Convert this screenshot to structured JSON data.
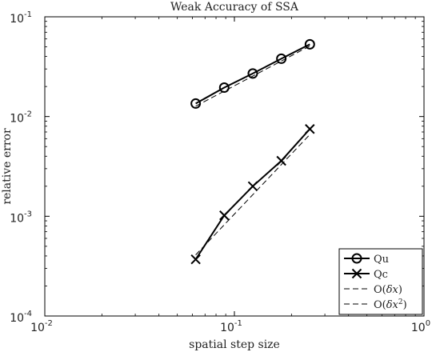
{
  "chart_data": {
    "type": "line",
    "title": "Weak Accuracy of SSA",
    "xlabel": "spatial step size",
    "ylabel": "relative error",
    "xscale": "log",
    "yscale": "log",
    "xlim": [
      0.01,
      1
    ],
    "ylim": [
      0.0001,
      0.1
    ],
    "grid": false,
    "legend_position": "bottom-right",
    "x_ticks": [
      {
        "base": "10",
        "exp": "-2",
        "value": 0.01
      },
      {
        "base": "10",
        "exp": "-1",
        "value": 0.1
      },
      {
        "base": "10",
        "exp": "0",
        "value": 1
      }
    ],
    "y_ticks": [
      {
        "base": "10",
        "exp": "-4",
        "value": 0.0001
      },
      {
        "base": "10",
        "exp": "-3",
        "value": 0.001
      },
      {
        "base": "10",
        "exp": "-2",
        "value": 0.01
      },
      {
        "base": "10",
        "exp": "-1",
        "value": 0.1
      }
    ],
    "series": [
      {
        "name": "Qu",
        "style": "solid",
        "marker": "circle",
        "color": "#000000",
        "x": [
          0.0625,
          0.0884,
          0.125,
          0.1768,
          0.25
        ],
        "y": [
          0.0135,
          0.0195,
          0.027,
          0.038,
          0.053
        ]
      },
      {
        "name": "Qc",
        "style": "solid",
        "marker": "cross",
        "color": "#000000",
        "x": [
          0.0625,
          0.0884,
          0.125,
          0.1768,
          0.25
        ],
        "y": [
          0.00037,
          0.00102,
          0.002,
          0.0036,
          0.0075
        ]
      },
      {
        "name": "O(δx)",
        "name_parts": {
          "pre": "O(",
          "var": "δx",
          "sup": "",
          "post": ")"
        },
        "style": "dashed",
        "marker": "none",
        "color": "#000000",
        "x": [
          0.0625,
          0.25
        ],
        "y": [
          0.0127,
          0.051
        ]
      },
      {
        "name": "O(δx²)",
        "name_parts": {
          "pre": "O(",
          "var": "δx",
          "sup": "2",
          "post": ")"
        },
        "style": "dashed",
        "marker": "none",
        "color": "#000000",
        "x": [
          0.0625,
          0.25
        ],
        "y": [
          0.00041,
          0.0066
        ]
      }
    ]
  }
}
